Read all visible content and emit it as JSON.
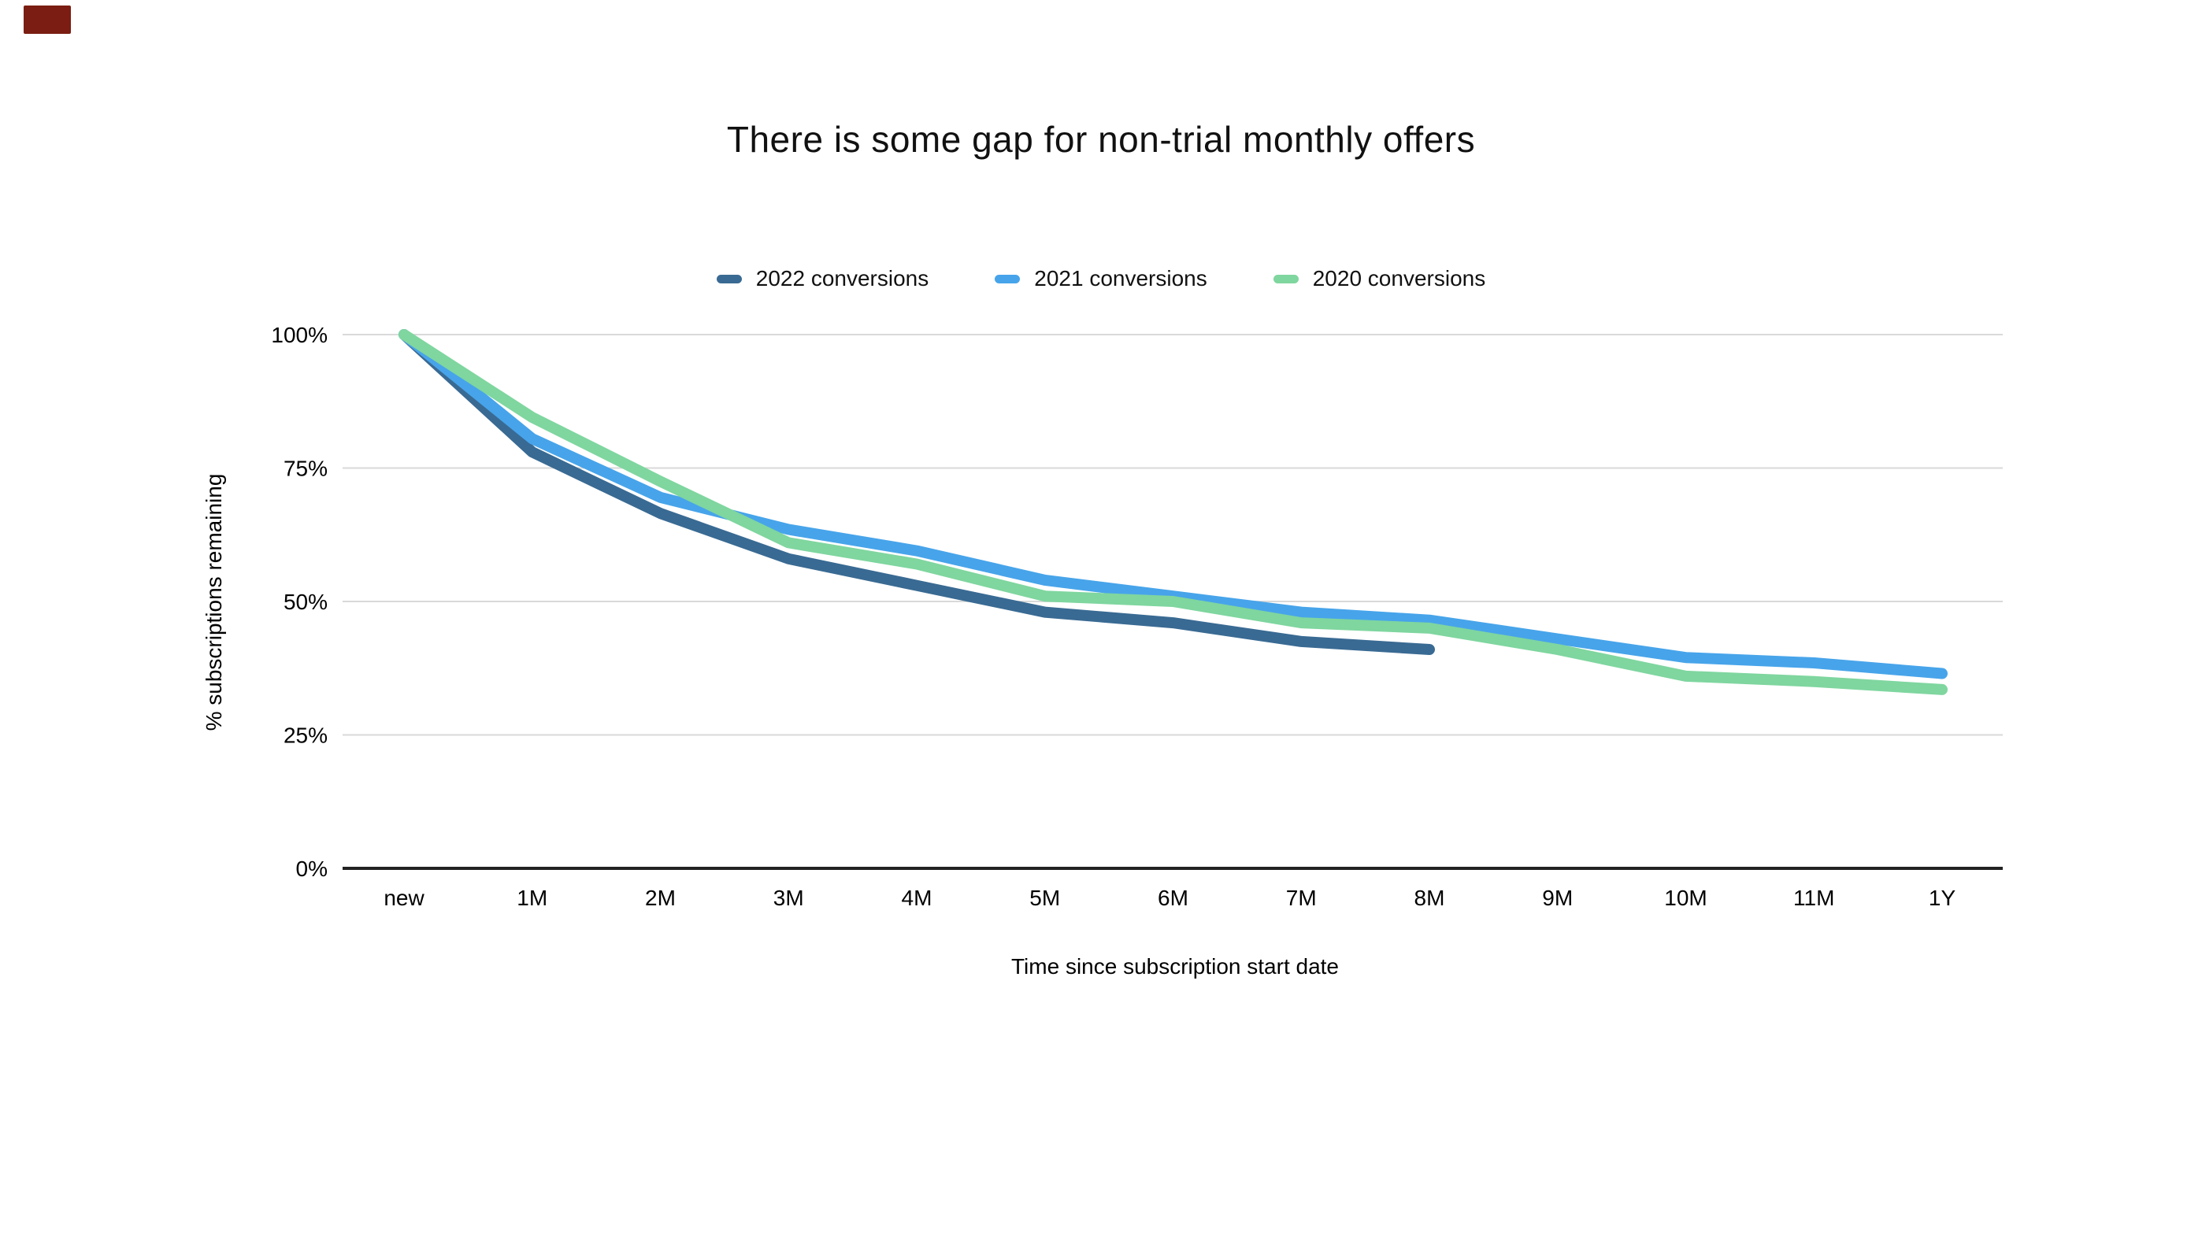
{
  "decorations": {
    "corner_mark_color": "#7b1d12"
  },
  "chart_data": {
    "type": "line",
    "title": "There is some gap for non-trial monthly offers",
    "xlabel": "Time since subscription start date",
    "ylabel": "% subscriptions remaining",
    "categories": [
      "new",
      "1M",
      "2M",
      "3M",
      "4M",
      "5M",
      "6M",
      "7M",
      "8M",
      "9M",
      "10M",
      "11M",
      "1Y"
    ],
    "y_ticks": [
      "0%",
      "25%",
      "50%",
      "75%",
      "100%"
    ],
    "ylim": [
      0,
      100
    ],
    "grid": true,
    "legend_position": "top",
    "colors": {
      "grid": "#d9d9d9",
      "axis": "#222222"
    },
    "series": [
      {
        "name": "2022 conversions",
        "color": "#396a93",
        "values": [
          100,
          78,
          66.5,
          58,
          53,
          48,
          46,
          42.5,
          41,
          null,
          null,
          null,
          null
        ]
      },
      {
        "name": "2021 conversions",
        "color": "#47a4ea",
        "values": [
          100,
          80.5,
          69.5,
          63.5,
          59.5,
          54,
          51,
          48,
          46.5,
          43,
          39.5,
          38.5,
          36.5
        ]
      },
      {
        "name": "2020 conversions",
        "color": "#7fd69f",
        "values": [
          100,
          84.5,
          72.5,
          61,
          57,
          51,
          50,
          46,
          45,
          41,
          36,
          35,
          33.5
        ]
      }
    ]
  }
}
